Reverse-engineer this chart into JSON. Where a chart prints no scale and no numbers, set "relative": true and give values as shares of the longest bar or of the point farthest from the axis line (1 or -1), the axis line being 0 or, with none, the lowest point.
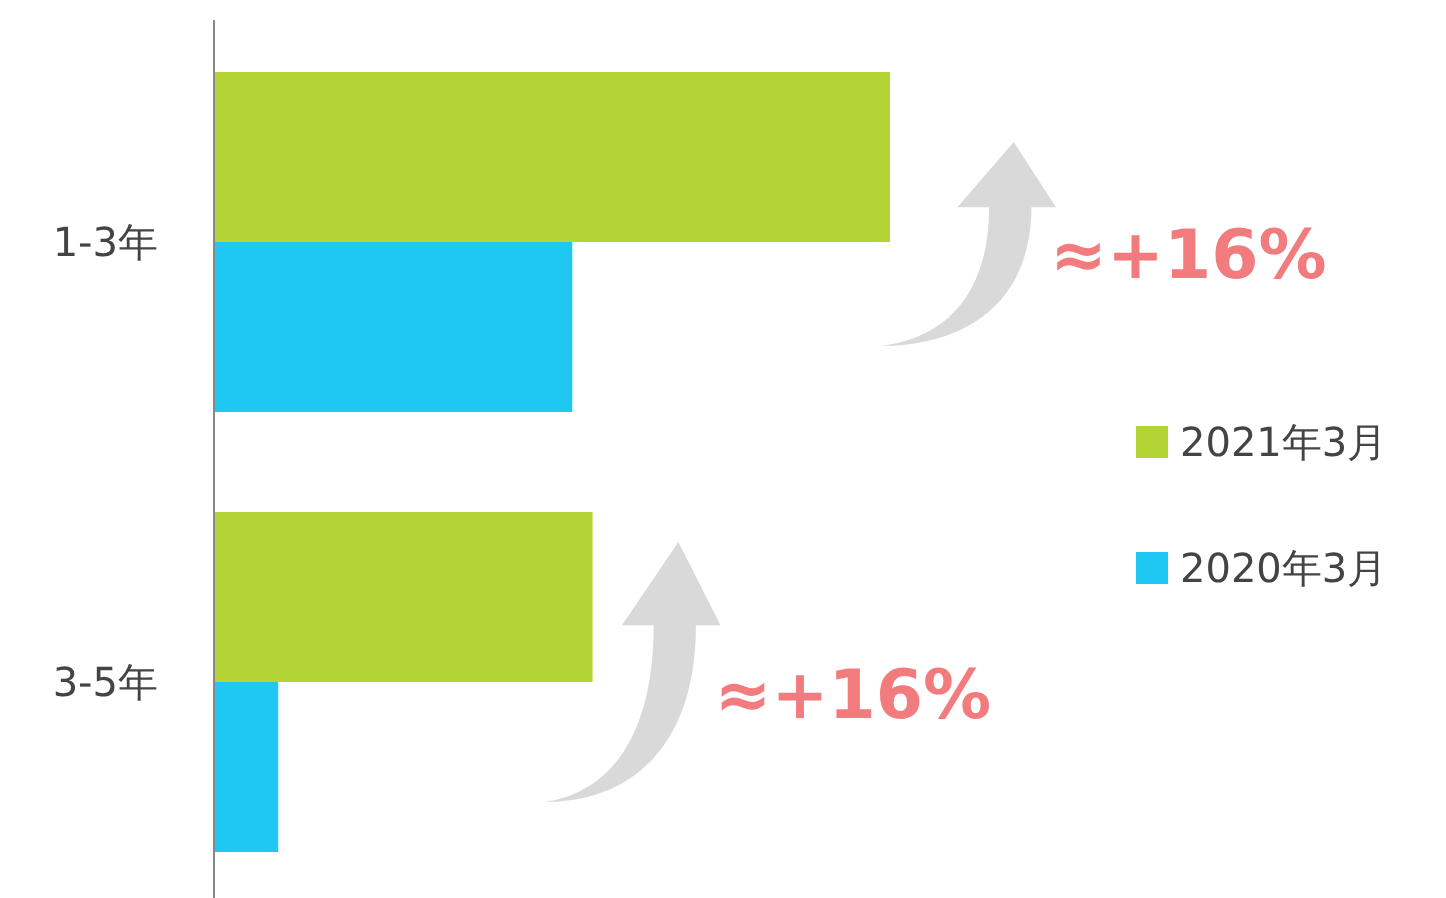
{
  "chart_data": {
    "type": "bar",
    "orientation": "horizontal",
    "relative": true,
    "legend": "right",
    "categories": [
      "1-3年",
      "3-5年"
    ],
    "series": [
      {
        "name": "2021年3月",
        "color": "#b4d334",
        "values": [
          1,
          0.56
        ]
      },
      {
        "name": "2020年3月",
        "color": "#1fc8f2",
        "values": [
          0.53,
          0.095
        ]
      }
    ],
    "annotations": [
      "≈+16%",
      "≈+16%"
    ]
  }
}
